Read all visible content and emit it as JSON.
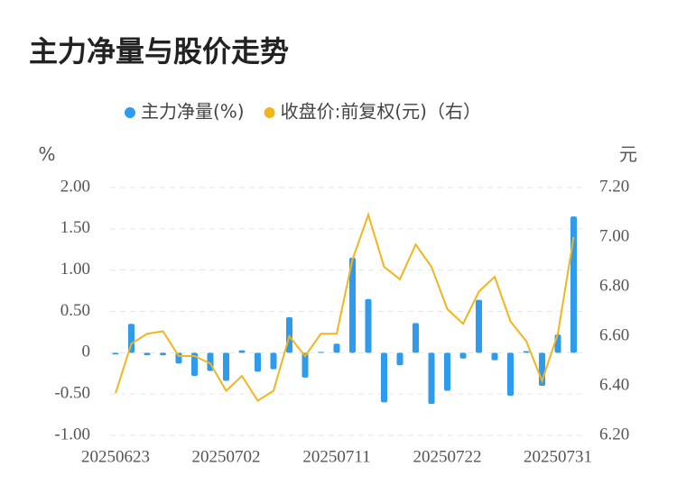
{
  "chart_data": {
    "type": "bar_line",
    "title": "主力净量与股价走势",
    "y_label": "%",
    "y2_label": "元",
    "categories": [
      "20250623",
      null,
      null,
      null,
      null,
      null,
      null,
      "20250702",
      null,
      null,
      null,
      null,
      null,
      null,
      "20250711",
      null,
      null,
      null,
      null,
      null,
      null,
      "20250722",
      null,
      null,
      null,
      null,
      null,
      null,
      "20250731",
      null
    ],
    "series": [
      {
        "name": "主力净量(%)",
        "type": "bar",
        "color": "#2e9bec",
        "values": [
          -0.02,
          0.35,
          -0.03,
          -0.03,
          -0.13,
          -0.28,
          -0.22,
          -0.34,
          0.03,
          -0.23,
          -0.2,
          0.43,
          -0.3,
          0.01,
          0.11,
          1.15,
          0.65,
          -0.6,
          -0.15,
          0.36,
          -0.62,
          -0.46,
          -0.07,
          0.64,
          -0.09,
          -0.52,
          0.02,
          -0.4,
          0.22,
          1.65
        ]
      },
      {
        "name": "收盘价:前复权(元)（右）",
        "type": "line",
        "axis": "y2",
        "color": "#f2b51c",
        "values": [
          6.37,
          6.57,
          6.61,
          6.62,
          6.52,
          6.52,
          6.49,
          6.38,
          6.44,
          6.34,
          6.38,
          6.6,
          6.52,
          6.61,
          6.61,
          6.91,
          7.09,
          6.88,
          6.83,
          6.97,
          6.88,
          6.71,
          6.65,
          6.78,
          6.84,
          6.66,
          6.58,
          6.42,
          6.61,
          7.0
        ]
      }
    ],
    "ylim": [
      -1,
      2
    ],
    "yticks": [
      {
        "value": 2,
        "label": "2.00"
      },
      {
        "value": 1.5,
        "label": "1.50"
      },
      {
        "value": 1,
        "label": "1.00"
      },
      {
        "value": 0.5,
        "label": "0.50"
      },
      0,
      {
        "value": -0.5,
        "label": "-0.50"
      },
      {
        "value": -1,
        "label": "-1.00"
      }
    ],
    "y2lim": [
      6.2,
      7.2
    ],
    "y2ticks": [
      {
        "value": 7.2,
        "label": "7.20"
      },
      {
        "value": 7,
        "label": "7.00"
      },
      {
        "value": 6.8,
        "label": "6.80"
      },
      {
        "value": 6.6,
        "label": "6.60"
      },
      {
        "value": 6.4,
        "label": "6.40"
      },
      {
        "value": 6.2,
        "label": "6.20"
      }
    ],
    "grid": true,
    "legend": "top"
  }
}
